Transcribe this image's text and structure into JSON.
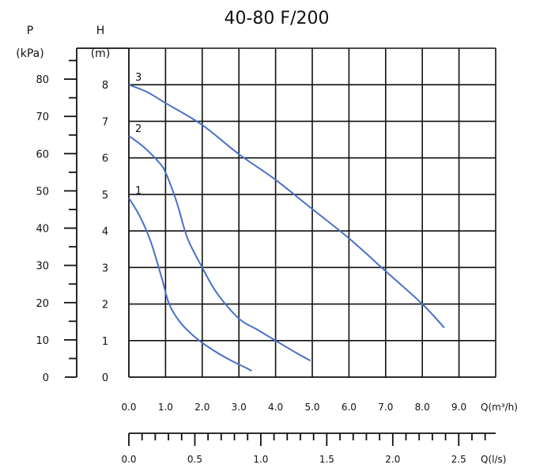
{
  "chart_data": {
    "type": "line",
    "title": "40-80  F/200",
    "h_axis": {
      "symbol": "H",
      "unit": "(m)",
      "ticks": [
        "0",
        "1",
        "2",
        "3",
        "4",
        "5",
        "6",
        "7",
        "8"
      ],
      "ylim": [
        0,
        9
      ]
    },
    "p_axis": {
      "symbol": "P",
      "unit": "(kPa)",
      "ticks": [
        "0",
        "10",
        "20",
        "30",
        "40",
        "50",
        "60",
        "70",
        "80"
      ],
      "range": [
        0,
        88.3
      ]
    },
    "q_axis": {
      "label": "Q(m³/h)",
      "ticks": [
        "0.0",
        "1.0",
        "2.0",
        "3.0",
        "4.0",
        "5.0",
        "6.0",
        "7.0",
        "8.0",
        "9.0"
      ],
      "xlim": [
        0,
        10
      ]
    },
    "q_ls_axis": {
      "label": "Q(l/s)",
      "ticks": [
        "0.0",
        "0.5",
        "1.0",
        "1.5",
        "2.0",
        "2.5"
      ],
      "range": [
        0,
        2.78
      ]
    },
    "grid": true,
    "series": [
      {
        "name": "1",
        "x": [
          0,
          0.3,
          0.6,
          0.9,
          1.1,
          1.4,
          1.8,
          2.2,
          2.7,
          3.2,
          3.35
        ],
        "y": [
          4.9,
          4.4,
          3.7,
          2.7,
          2.0,
          1.5,
          1.1,
          0.8,
          0.5,
          0.25,
          0.17
        ]
      },
      {
        "name": "2",
        "x": [
          0,
          0.4,
          0.8,
          1.0,
          1.3,
          1.6,
          2.0,
          2.4,
          3.0,
          3.5,
          4.0,
          4.5,
          4.95
        ],
        "y": [
          6.6,
          6.3,
          5.9,
          5.6,
          4.8,
          3.8,
          3.0,
          2.3,
          1.6,
          1.3,
          1.0,
          0.7,
          0.45
        ]
      },
      {
        "name": "3",
        "x": [
          0,
          0.5,
          1.0,
          2.0,
          3.0,
          4.0,
          5.0,
          6.0,
          7.0,
          8.0,
          8.6
        ],
        "y": [
          8.0,
          7.8,
          7.5,
          6.9,
          6.1,
          5.4,
          4.6,
          3.8,
          2.9,
          2.0,
          1.35
        ]
      }
    ]
  }
}
